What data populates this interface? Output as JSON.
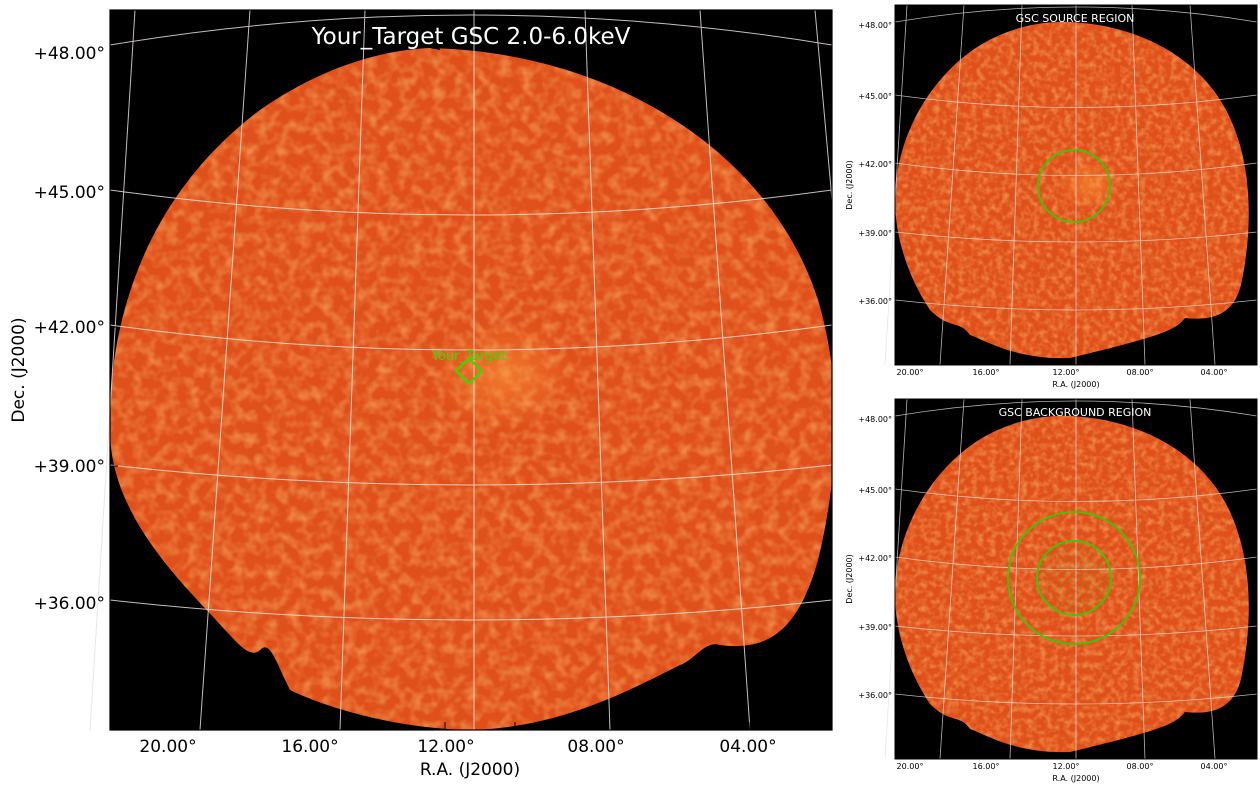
{
  "main": {
    "title": "Your_Target GSC 2.0-6.0keV",
    "target_label": "Your_Target",
    "xlabel": "R.A. (J2000)",
    "ylabel": "Dec. (J2000)",
    "xticks": [
      "20.00°",
      "16.00°",
      "12.00°",
      "08.00°",
      "04.00°"
    ],
    "yticks": [
      "+48.00°",
      "+45.00°",
      "+42.00°",
      "+39.00°",
      "+36.00°"
    ]
  },
  "source_panel": {
    "title": "GSC SOURCE REGION",
    "xlabel": "R.A. (J2000)",
    "ylabel": "Dec. (J2000)",
    "xticks": [
      "20.00°",
      "16.00°",
      "12.00°",
      "08.00°",
      "04.00°"
    ],
    "yticks": [
      "+48.00°",
      "+45.00°",
      "+42.00°",
      "+39.00°",
      "+36.00°"
    ]
  },
  "background_panel": {
    "title": "GSC BACKGROUND REGION",
    "xlabel": "R.A. (J2000)",
    "ylabel": "Dec. (J2000)",
    "xticks": [
      "20.00°",
      "16.00°",
      "12.00°",
      "08.00°",
      "04.00°"
    ],
    "yticks": [
      "+48.00°",
      "+45.00°",
      "+42.00°",
      "+39.00°",
      "+36.00°"
    ]
  },
  "colors": {
    "field": "#e0501a",
    "field_mottle": "#f07a2a",
    "sky_background": "#000000",
    "grid": "#e8e0dc",
    "region": "#33cc00"
  }
}
